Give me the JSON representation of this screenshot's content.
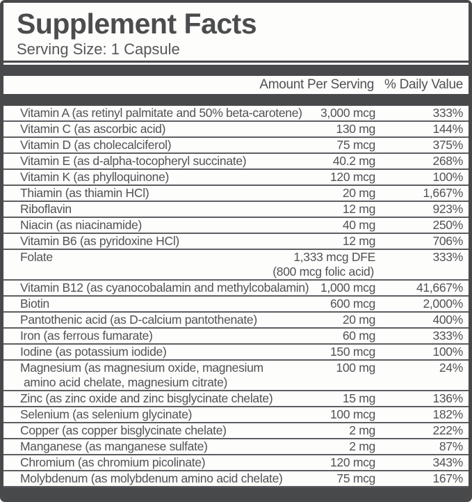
{
  "label": {
    "title": "Supplement Facts",
    "serving_size": "Serving Size: 1 Capsule",
    "columns": {
      "amount": "Amount Per Serving",
      "daily_value": "% Daily Value"
    },
    "colors": {
      "frame": "#48494b",
      "paper": "#fdfdfb",
      "text": "#515256",
      "separator": "#5d5e62"
    },
    "rows": [
      {
        "name": "Vitamin A (as retinyl palmitate and 50% beta-carotene)",
        "amount": "3,000 mcg",
        "dv": "333%"
      },
      {
        "name": "Vitamin C (as ascorbic acid)",
        "amount": "130 mg",
        "dv": "144%"
      },
      {
        "name": "Vitamin D (as cholecalciferol)",
        "amount": "75 mcg",
        "dv": "375%"
      },
      {
        "name": "Vitamin E (as d-alpha-tocopheryl succinate)",
        "amount": "40.2 mg",
        "dv": "268%"
      },
      {
        "name": "Vitamin K (as phylloquinone)",
        "amount": "120 mcg",
        "dv": "100%"
      },
      {
        "name": "Thiamin (as thiamin HCl)",
        "amount": "20 mg",
        "dv": "1,667%"
      },
      {
        "name": "Riboflavin",
        "amount": "12 mg",
        "dv": "923%"
      },
      {
        "name": "Niacin (as niacinamide)",
        "amount": "40 mg",
        "dv": "250%"
      },
      {
        "name": "Vitamin B6 (as pyridoxine HCl)",
        "amount": "12 mg",
        "dv": "706%"
      },
      {
        "name": "Folate",
        "amount": "1,333 mcg DFE",
        "amount2": "(800 mcg folic acid)",
        "dv": "333%"
      },
      {
        "name": "Vitamin B12 (as cyanocobalamin and methylcobalamin)",
        "amount": "1,000 mcg",
        "dv": "41,667%"
      },
      {
        "name": "Biotin",
        "amount": "600 mcg",
        "dv": "2,000%"
      },
      {
        "name": "Pantothenic acid (as D-calcium pantothenate)",
        "amount": "20 mg",
        "dv": "400%"
      },
      {
        "name": "Iron (as ferrous fumarate)",
        "amount": "60 mg",
        "dv": "333%"
      },
      {
        "name": "Iodine (as potassium iodide)",
        "amount": "150 mcg",
        "dv": "100%"
      },
      {
        "name": "Magnesium (as magnesium oxide, magnesium",
        "name2": "amino acid chelate, magnesium citrate)",
        "amount": "100 mg",
        "dv": "24%"
      },
      {
        "name": "Zinc (as zinc oxide and zinc bisglycinate chelate)",
        "amount": "15 mg",
        "dv": "136%"
      },
      {
        "name": "Selenium (as selenium glycinate)",
        "amount": "100 mcg",
        "dv": "182%"
      },
      {
        "name": "Copper (as copper bisglycinate chelate)",
        "amount": "2 mg",
        "dv": "222%"
      },
      {
        "name": "Manganese (as manganese sulfate)",
        "amount": "2 mg",
        "dv": "87%"
      },
      {
        "name": "Chromium (as chromium picolinate)",
        "amount": "120 mcg",
        "dv": "343%"
      },
      {
        "name": "Molybdenum (as molybdenum amino acid chelate)",
        "amount": "75 mcg",
        "dv": "167%"
      }
    ]
  }
}
